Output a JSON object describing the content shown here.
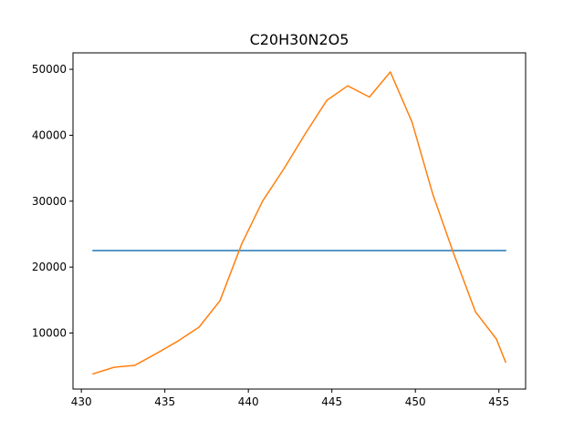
{
  "chart_data": {
    "type": "line",
    "title": "C20H30N2O5",
    "xlabel": "",
    "ylabel": "",
    "xlim": [
      429.5,
      456.6
    ],
    "ylim": [
      1500,
      52500
    ],
    "x_ticks": [
      430,
      435,
      440,
      445,
      450,
      455
    ],
    "y_ticks": [
      10000,
      20000,
      30000,
      40000,
      50000
    ],
    "grid": false,
    "series": [
      {
        "color": "#1f77b4",
        "x": [
          430.7,
          455.4
        ],
        "y": [
          22500,
          22500
        ]
      },
      {
        "color": "#ff7f0e",
        "x": [
          430.7,
          431.95,
          433.2,
          434.5,
          435.8,
          437.05,
          438.3,
          439.6,
          440.85,
          442.15,
          443.4,
          444.7,
          445.95,
          447.25,
          448.5,
          449.8,
          451.05,
          452.3,
          453.6,
          454.85,
          455.4
        ],
        "y": [
          3800,
          4800,
          5100,
          6900,
          8800,
          10900,
          14900,
          23500,
          30000,
          35000,
          40200,
          45300,
          47500,
          45800,
          49600,
          42000,
          31000,
          22000,
          13200,
          9100,
          5600
        ]
      }
    ]
  }
}
